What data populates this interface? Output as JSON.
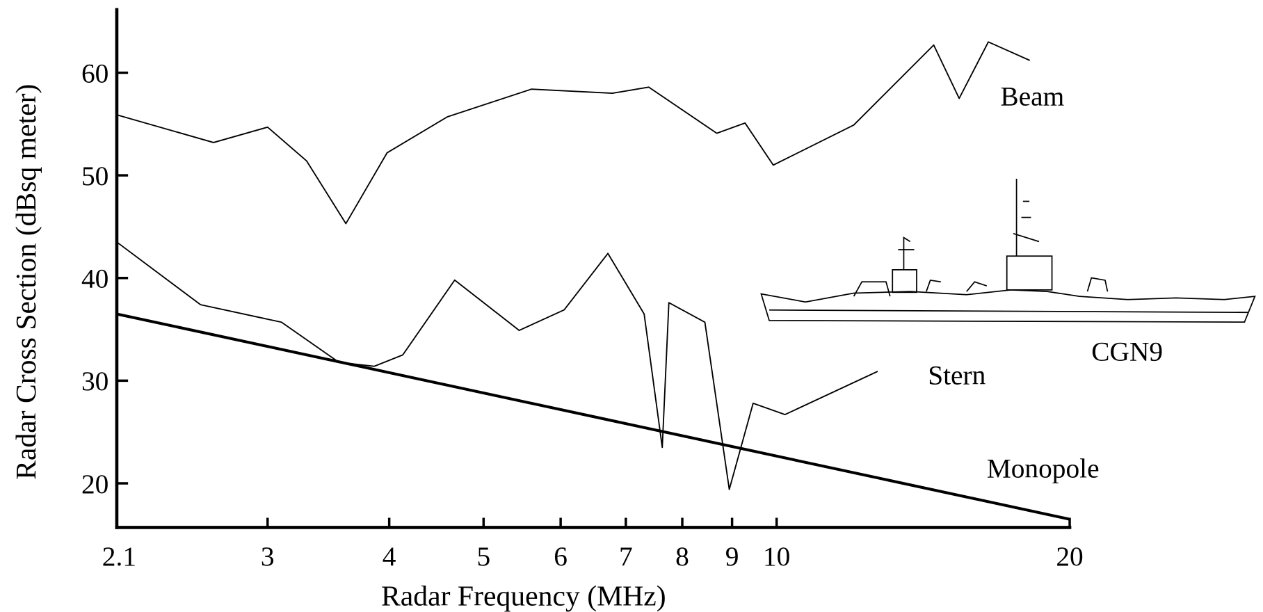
{
  "chart_data": {
    "type": "line",
    "x_label": "Radar Frequency (MHz)",
    "y_label": "Radar Cross Section (dBsq meter)",
    "xscale": "log",
    "xlim": [
      2.1,
      20
    ],
    "xticks": [
      2.1,
      3,
      4,
      5,
      6,
      7,
      8,
      9,
      10,
      20
    ],
    "ylim": [
      15.7,
      66.3
    ],
    "yticks": [
      20,
      30,
      40,
      50,
      60
    ],
    "grid": false,
    "series": [
      {
        "name": "Beam",
        "color": "#000000",
        "x": [
          2.1,
          2.64,
          3.0,
          3.29,
          3.61,
          3.98,
          4.59,
          5.6,
          6.78,
          7.39,
          8.68,
          9.28,
          9.92,
          12.0,
          14.5,
          15.4,
          16.5,
          18.2
        ],
        "values": [
          55.9,
          53.2,
          54.7,
          51.4,
          45.3,
          52.2,
          55.7,
          58.4,
          58.0,
          58.6,
          54.1,
          55.1,
          51.0,
          54.9,
          62.7,
          57.5,
          63.0,
          61.2
        ]
      },
      {
        "name": "Stern",
        "color": "#000000",
        "x": [
          2.1,
          2.56,
          3.1,
          3.55,
          3.86,
          4.13,
          4.67,
          5.44,
          6.05,
          6.71,
          7.31,
          7.63,
          7.75,
          8.44,
          8.94,
          9.46,
          10.2,
          12.7
        ],
        "values": [
          43.5,
          37.4,
          35.7,
          31.8,
          31.4,
          32.5,
          39.8,
          34.9,
          36.9,
          42.4,
          36.5,
          23.5,
          37.6,
          35.7,
          19.4,
          27.8,
          26.7,
          30.9
        ]
      },
      {
        "name": "Monopole",
        "color": "#000000",
        "x": [
          2.1,
          20
        ],
        "values": [
          36.5,
          16.5
        ]
      }
    ],
    "annotations": [
      "CGN9"
    ]
  }
}
